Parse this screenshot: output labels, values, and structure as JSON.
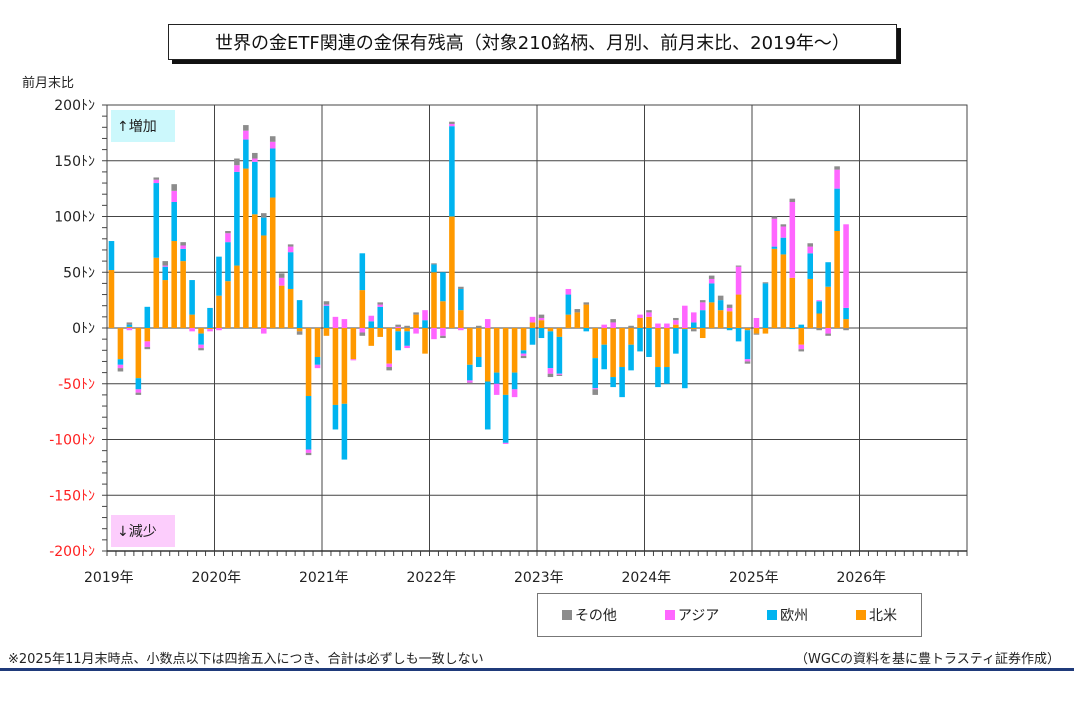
{
  "title": "世界の金ETF関連の金保有残高（対象210銘柄、月別、前月末比、2019年～）",
  "y_axis_title": "前月末比",
  "annotations": {
    "increase": "↑増加",
    "decrease": "↓減少"
  },
  "footnote": "※2025年11月末時点、小数点以下は四捨五入につき、合計は必ずしも一致しない",
  "source": "（WGCの資料を基に豊トラスティ証券作成）",
  "legend": [
    {
      "label": "その他",
      "color": "#8c8c8c"
    },
    {
      "label": "アジア",
      "color": "#ff66ff"
    },
    {
      "label": "欧州",
      "color": "#00b4f0"
    },
    {
      "label": "北米",
      "color": "#ff9900"
    }
  ],
  "colors": {
    "positive_tick": "#222222",
    "negative_tick": "#ff2020"
  },
  "chart_data": {
    "type": "bar",
    "stacked": true,
    "title": "世界の金ETF関連の金保有残高（対象210銘柄、月別、前月末比、2019年～）",
    "ylabel": "前月末比",
    "ylim": [
      -200,
      200
    ],
    "y_ticks": [
      "200ﾄﾝ",
      "150ﾄﾝ",
      "100ﾄﾝ",
      "50ﾄﾝ",
      "0ﾄﾝ",
      "-50ﾄﾝ",
      "-100ﾄﾝ",
      "-150ﾄﾝ",
      "-200ﾄﾝ"
    ],
    "y_tick_values": [
      200,
      150,
      100,
      50,
      0,
      -50,
      -100,
      -150,
      -200
    ],
    "x_ticks": [
      "2019年",
      "2020年",
      "2021年",
      "2022年",
      "2023年",
      "2024年",
      "2025年",
      "2026年"
    ],
    "x_range_years": [
      2019,
      2027
    ],
    "grid": true,
    "legend_position": "bottom-right",
    "series_order": [
      "北米",
      "欧州",
      "アジア",
      "その他"
    ],
    "start_month": "2019-01",
    "months": [
      [
        52,
        26,
        0,
        0
      ],
      [
        -28,
        -5,
        -3,
        -3
      ],
      [
        1,
        2,
        -2,
        2
      ],
      [
        -45,
        -10,
        -3,
        -2
      ],
      [
        -12,
        19,
        -5,
        -2
      ],
      [
        63,
        67,
        3,
        2
      ],
      [
        43,
        12,
        1,
        4
      ],
      [
        78,
        35,
        10,
        6
      ],
      [
        60,
        11,
        3,
        3
      ],
      [
        12,
        31,
        -3,
        0
      ],
      [
        -5,
        -10,
        -3,
        -2
      ],
      [
        -1,
        18,
        -2,
        0
      ],
      [
        29,
        35,
        -2,
        0
      ],
      [
        42,
        35,
        8,
        2
      ],
      [
        56,
        84,
        6,
        6
      ],
      [
        143,
        26,
        8,
        5
      ],
      [
        102,
        47,
        3,
        5
      ],
      [
        83,
        16,
        -5,
        4
      ],
      [
        117,
        44,
        6,
        5
      ],
      [
        38,
        0,
        7,
        4
      ],
      [
        35,
        33,
        5,
        2
      ],
      [
        -3,
        25,
        0,
        -3
      ],
      [
        -61,
        -48,
        -3,
        -2
      ],
      [
        -26,
        -7,
        -3,
        0
      ],
      [
        -7,
        20,
        1,
        3
      ],
      [
        -69,
        -22,
        10,
        0
      ],
      [
        -68,
        -50,
        8,
        0
      ],
      [
        -28,
        0,
        -1,
        0
      ],
      [
        34,
        33,
        -4,
        -3
      ],
      [
        -16,
        6,
        5,
        0
      ],
      [
        -8,
        19,
        2,
        2
      ],
      [
        -32,
        0,
        -3,
        -3
      ],
      [
        -3,
        -17,
        1,
        2
      ],
      [
        -3,
        -13,
        -2,
        2
      ],
      [
        12,
        0,
        -5,
        2
      ],
      [
        -23,
        7,
        9,
        0
      ],
      [
        50,
        7,
        -10,
        1
      ],
      [
        24,
        26,
        -7,
        -2
      ],
      [
        100,
        81,
        2,
        2
      ],
      [
        16,
        19,
        -2,
        2
      ],
      [
        -33,
        -14,
        -2,
        -1
      ],
      [
        -26,
        -9,
        0,
        2
      ],
      [
        -48,
        -43,
        8,
        0
      ],
      [
        -40,
        -10,
        -10,
        0
      ],
      [
        -60,
        -43,
        -1,
        0
      ],
      [
        -40,
        -15,
        -7,
        0
      ],
      [
        -20,
        -3,
        -2,
        -2
      ],
      [
        5,
        -15,
        5,
        0
      ],
      [
        7,
        -9,
        2,
        3
      ],
      [
        -3,
        -33,
        -5,
        -3
      ],
      [
        -8,
        -33,
        -1,
        -1
      ],
      [
        12,
        18,
        5,
        0
      ],
      [
        14,
        0,
        0,
        3
      ],
      [
        21,
        -3,
        0,
        2
      ],
      [
        -27,
        -27,
        -1,
        -5
      ],
      [
        -15,
        -22,
        3,
        0
      ],
      [
        -44,
        -9,
        5,
        3
      ],
      [
        -35,
        -27,
        0,
        0
      ],
      [
        -15,
        -23,
        0,
        2
      ],
      [
        9,
        -21,
        3,
        0
      ],
      [
        10,
        -26,
        4,
        2
      ],
      [
        -35,
        -18,
        4,
        0
      ],
      [
        -35,
        -15,
        4,
        0
      ],
      [
        3,
        -23,
        4,
        2
      ],
      [
        -1,
        -53,
        20,
        0
      ],
      [
        -1,
        5,
        9,
        -2
      ],
      [
        -9,
        16,
        7,
        2
      ],
      [
        23,
        17,
        4,
        3
      ],
      [
        16,
        9,
        0,
        4
      ],
      [
        15,
        -2,
        3,
        3
      ],
      [
        30,
        -12,
        25,
        1
      ],
      [
        -2,
        -26,
        -2,
        -2
      ],
      [
        -5,
        0,
        9,
        -1
      ],
      [
        -5,
        40,
        0,
        1
      ],
      [
        71,
        2,
        25,
        2
      ],
      [
        66,
        15,
        10,
        2
      ],
      [
        45,
        -1,
        68,
        3
      ],
      [
        -15,
        3,
        -4,
        -2
      ],
      [
        44,
        23,
        6,
        3
      ],
      [
        13,
        11,
        1,
        -2
      ],
      [
        37,
        22,
        -5,
        -2
      ],
      [
        87,
        38,
        17,
        3
      ],
      [
        8,
        10,
        75,
        -2
      ]
    ],
    "months_note": "Each row: [北米, 欧州, アジア, その他] in tons; last row = 2025-11"
  }
}
